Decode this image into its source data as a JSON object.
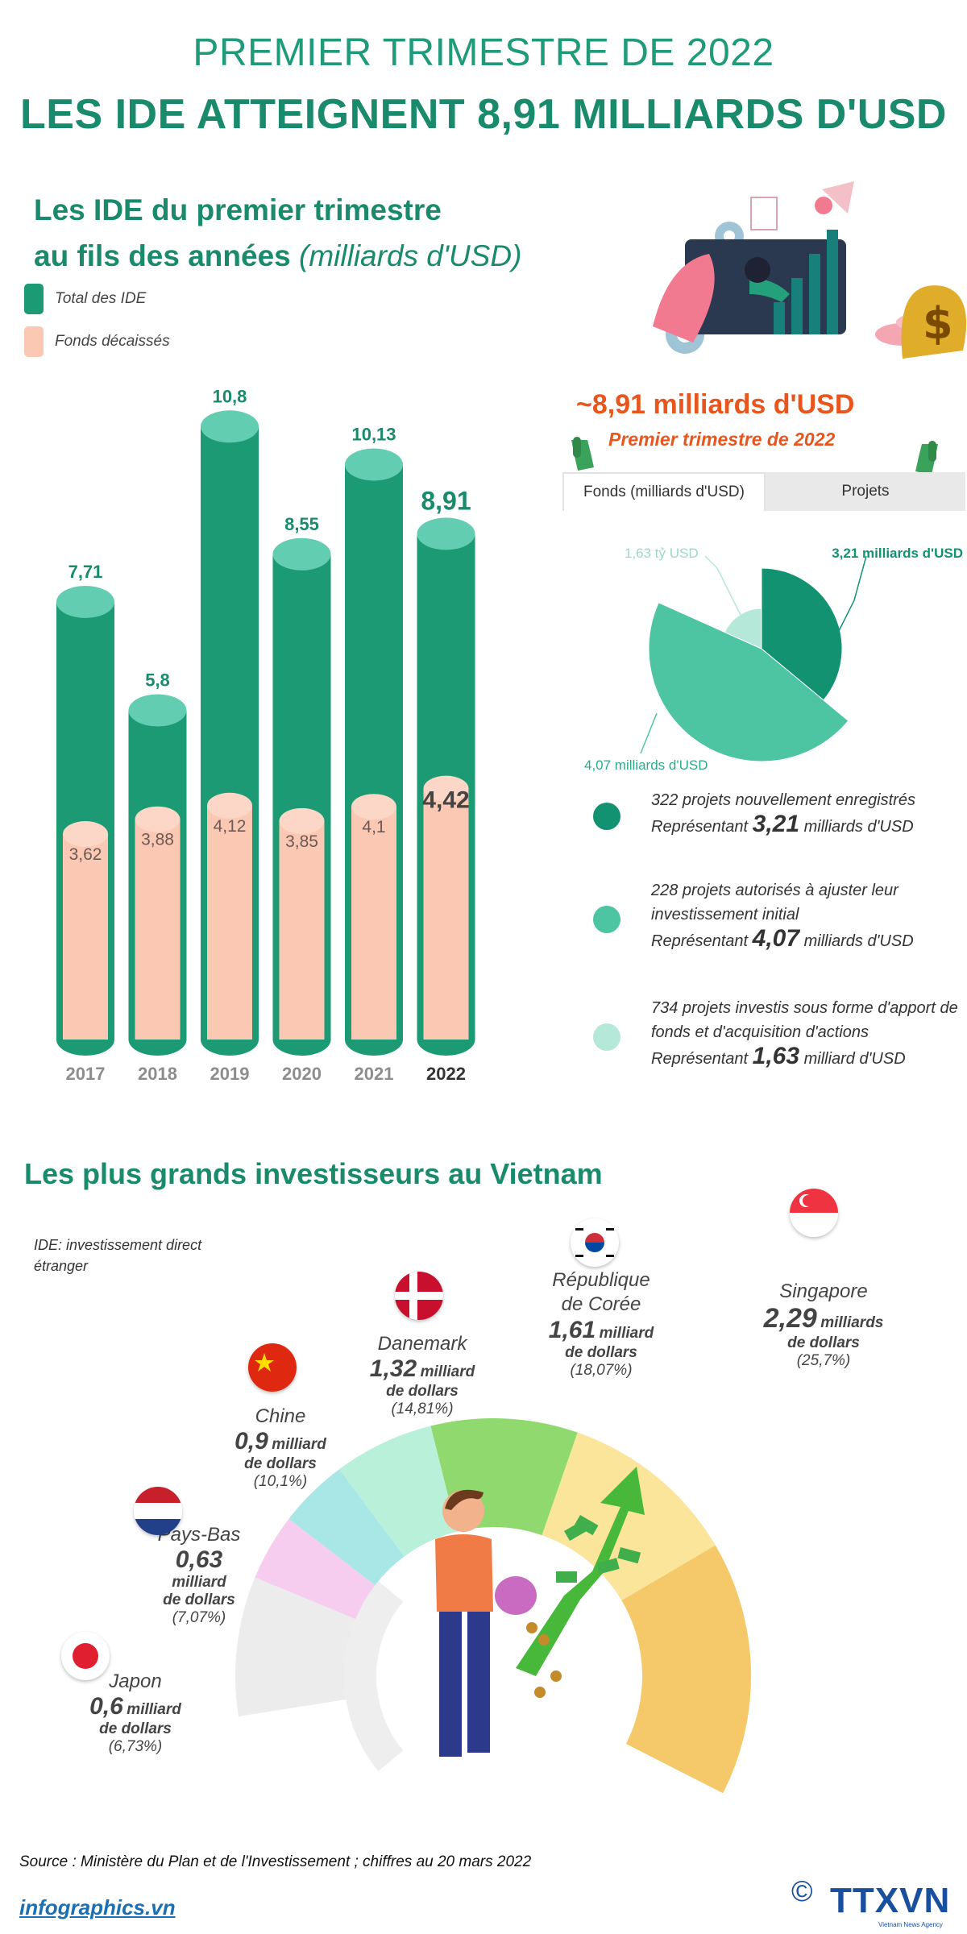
{
  "header": {
    "subtitle": "PREMIER TRIMESTRE DE 2022",
    "title": "LES IDE ATTEIGNENT 8,91 MILLIARDS D'USD"
  },
  "section1": {
    "title_line1": "Les IDE du premier trimestre",
    "title_line2": "au fils des années",
    "title_unit": "(milliards d'USD)"
  },
  "legend": {
    "total": "Total des IDE",
    "disbursed": "Fonds décaissés"
  },
  "colors": {
    "brand": "#1a8a6c",
    "bar_total": "#1c9a74",
    "bar_top": "#62cdb1",
    "bar_disbursed": "#fbc8b4",
    "accent": "#e8561e",
    "pie_new": "#139272",
    "pie_adjust": "#4dc5a2",
    "pie_capital": "#b6e8da"
  },
  "chart_data": [
    {
      "type": "bar",
      "title": "Les IDE du premier trimestre au fils des années (milliards d'USD)",
      "categories": [
        "2017",
        "2018",
        "2019",
        "2020",
        "2021",
        "2022"
      ],
      "series": [
        {
          "name": "Total des IDE",
          "values": [
            7.71,
            5.8,
            10.8,
            8.55,
            10.13,
            8.91
          ],
          "labels": [
            "7,71",
            "5,8",
            "10,8",
            "8,55",
            "10,13",
            "8,91"
          ]
        },
        {
          "name": "Fonds décaissés",
          "values": [
            3.62,
            3.88,
            4.12,
            3.85,
            4.1,
            4.42
          ],
          "labels": [
            "3,62",
            "3,88",
            "4,12",
            "3,85",
            "4,1",
            "4,42"
          ]
        }
      ],
      "ylim": [
        0,
        11.5
      ]
    },
    {
      "type": "pie",
      "slices": [
        {
          "label": "3,21 milliards d'USD",
          "value": 3.21
        },
        {
          "label": "4,07 milliards d'USD",
          "value": 4.07
        },
        {
          "label": "1,63 tỷ USD",
          "value": 1.63
        }
      ]
    },
    {
      "type": "bar",
      "title": "Les plus grands investisseurs au Vietnam",
      "categories": [
        "Japon",
        "Pays-Bas",
        "Chine",
        "Danemark",
        "République de Corée",
        "Singapore"
      ],
      "values": [
        0.6,
        0.63,
        0.9,
        1.32,
        1.61,
        2.29
      ],
      "percent": [
        6.73,
        7.07,
        10.1,
        14.81,
        18.07,
        25.7
      ]
    }
  ],
  "hero": {
    "value": "~8,91 milliards d'USD",
    "sub": "Premier trimestre de 2022"
  },
  "tabs": {
    "funds": "Fonds (milliards d'USD)",
    "projects": "Projets"
  },
  "pie_legend": [
    {
      "line1": "322 projets nouvellement enregistrés",
      "prefix": "Représentant",
      "amount": "3,21",
      "unit": "milliards d'USD"
    },
    {
      "line1": "228 projets autorisés à ajuster leur investissement initial",
      "prefix": "Représentant",
      "amount": "4,07",
      "unit": "milliards d'USD"
    },
    {
      "line1": "734 projets investis sous forme d'apport de fonds et d'acquisition d'actions",
      "prefix": "Représentant",
      "amount": "1,63",
      "unit": "milliard d'USD"
    }
  ],
  "section2": {
    "title": "Les plus grands investisseurs au Vietnam",
    "note": "IDE: investissement direct étranger"
  },
  "investors": [
    {
      "name": "Japon",
      "amount": "0,6",
      "unit1": "milliard",
      "unit2": "de dollars",
      "pct": "(6,73%)",
      "color": "#f6cdef"
    },
    {
      "name": "Pays-Bas",
      "amount": "0,63",
      "unit1": "milliard",
      "unit2": "de dollars",
      "pct": "(7,07%)",
      "color": "#a9e7e6"
    },
    {
      "name": "Chine",
      "amount": "0,9",
      "unit1": "milliard",
      "unit2": "de dollars",
      "pct": "(10,1%)",
      "color": "#b9f0da"
    },
    {
      "name": "Danemark",
      "amount": "1,32",
      "unit1": "milliard",
      "unit2": "de dollars",
      "pct": "(14,81%)",
      "color": "#8fd96f"
    },
    {
      "name": "République de Corée",
      "amount": "1,61",
      "unit1": "milliard",
      "unit2": "de dollars",
      "pct": "(18,07%)",
      "color": "#fbe59a"
    },
    {
      "name": "Singapore",
      "amount": "2,29",
      "unit1": "milliards",
      "unit2": "de dollars",
      "pct": "(25,7%)",
      "color": "#f5c96a"
    }
  ],
  "footer": {
    "source": "Source : Ministère du Plan et de l'Investissement ; chiffres au 20 mars 2022",
    "site": "infographics.vn",
    "agency": "TTXVN",
    "agency_sub": "Vietnam News Agency",
    "copyright": "©"
  }
}
